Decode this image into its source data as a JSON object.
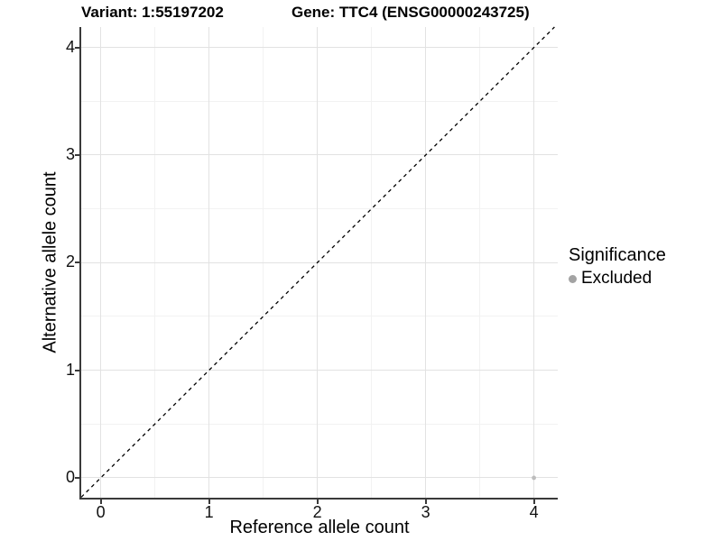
{
  "titles": {
    "variant": "Variant: 1:55197202",
    "gene": "Gene: TTC4 (ENSG00000243725)"
  },
  "chart_data": {
    "type": "scatter",
    "xlabel": "Reference allele count",
    "ylabel": "Alternative allele count",
    "xlim": [
      -0.18,
      4.22
    ],
    "ylim": [
      -0.185,
      4.19
    ],
    "x_ticks": [
      0,
      1,
      2,
      3,
      4
    ],
    "y_ticks": [
      0,
      1,
      2,
      3,
      4
    ],
    "x_minor_ticks": [
      0.5,
      1.5,
      2.5,
      3.5
    ],
    "y_minor_ticks": [
      0.5,
      1.5,
      2.5,
      3.5
    ],
    "grid": "major+minor",
    "identity_line": {
      "type": "y=x",
      "style": "dashed",
      "color": "#000000",
      "dash": [
        4,
        4
      ]
    },
    "series": [
      {
        "name": "Excluded",
        "color": "#bdbdbd",
        "points": [
          {
            "x": 4,
            "y": 0
          }
        ]
      }
    ],
    "legend": {
      "title": "Significance",
      "position": "right",
      "items": [
        {
          "label": "Excluded",
          "color": "#a3a3a3"
        }
      ]
    }
  },
  "colors": {
    "background": "#ffffff",
    "grid_major": "#e2e2e2",
    "grid_minor": "#f2f2f2",
    "axis_line": "#3a3a3a",
    "tick_label": "#111111",
    "point": "#bdbdbd",
    "legend_dot": "#a3a3a3",
    "identity_line": "#000000"
  }
}
